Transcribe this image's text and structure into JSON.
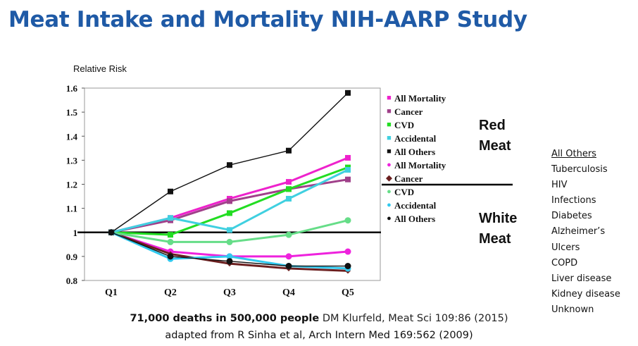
{
  "title": "Meat Intake and Mortality NIH-AARP Study",
  "chart_data": {
    "type": "line",
    "ylabel": "Relative Risk",
    "categories": [
      "Q1",
      "Q2",
      "Q3",
      "Q4",
      "Q5"
    ],
    "ylim": [
      0.8,
      1.6
    ],
    "yticks": [
      "0.8",
      "0.9",
      "1",
      "1.1",
      "1.2",
      "1.3",
      "1.4",
      "1.5",
      "1.6"
    ],
    "grid": false,
    "legend_position": "right",
    "series": [
      {
        "name": "All Mortality",
        "group": "red",
        "color": "#ee22cc",
        "marker": "square",
        "values": [
          1.0,
          1.06,
          1.14,
          1.21,
          1.31
        ]
      },
      {
        "name": "Cancer",
        "group": "red",
        "color": "#a0408a",
        "marker": "square",
        "values": [
          1.0,
          1.05,
          1.13,
          1.18,
          1.22
        ]
      },
      {
        "name": "CVD",
        "group": "red",
        "color": "#22dd22",
        "marker": "square",
        "values": [
          1.0,
          0.99,
          1.08,
          1.18,
          1.27
        ]
      },
      {
        "name": "Accidental",
        "group": "red",
        "color": "#40d0e0",
        "marker": "square",
        "values": [
          1.0,
          1.06,
          1.01,
          1.14,
          1.26
        ]
      },
      {
        "name": "All Others",
        "group": "red",
        "color": "#111111",
        "marker": "square",
        "values": [
          1.0,
          1.17,
          1.28,
          1.34,
          1.58
        ]
      },
      {
        "name": "All Mortality",
        "group": "white",
        "color": "#ee22dd",
        "marker": "circle",
        "values": [
          1.0,
          0.92,
          0.9,
          0.9,
          0.92
        ]
      },
      {
        "name": "Cancer",
        "group": "white",
        "color": "#6b1f1f",
        "marker": "diamond",
        "values": [
          1.0,
          0.91,
          0.87,
          0.85,
          0.84
        ]
      },
      {
        "name": "CVD",
        "group": "white",
        "color": "#66dd88",
        "marker": "circle",
        "values": [
          1.0,
          0.96,
          0.96,
          0.99,
          1.05
        ]
      },
      {
        "name": "Accidental",
        "group": "white",
        "color": "#30c8ee",
        "marker": "circle",
        "values": [
          1.0,
          0.89,
          0.9,
          0.86,
          0.85
        ]
      },
      {
        "name": "All Others",
        "group": "white",
        "color": "#111111",
        "marker": "circle",
        "values": [
          1.0,
          0.9,
          0.88,
          0.86,
          0.86
        ]
      }
    ],
    "reference_line": 1.0
  },
  "labels": {
    "red_meat_line1": "Red",
    "red_meat_line2": "Meat",
    "white_meat_line1": "White",
    "white_meat_line2": "Meat"
  },
  "all_others_box": {
    "heading": "All Others",
    "items": [
      "Tuberculosis",
      "HIV",
      "Infections",
      "Diabetes",
      "Alzheimer’s",
      "Ulcers",
      "COPD",
      "Liver disease",
      "Kidney disease",
      "Unknown"
    ]
  },
  "footer": {
    "line1_bold": "71,000 deaths in 500,000 people",
    "line1_ref": "DM Klurfeld, Meat Sci 109:86 (2015)",
    "line2": "adapted from R Sinha et al, Arch Intern Med 169:562 (2009)"
  }
}
